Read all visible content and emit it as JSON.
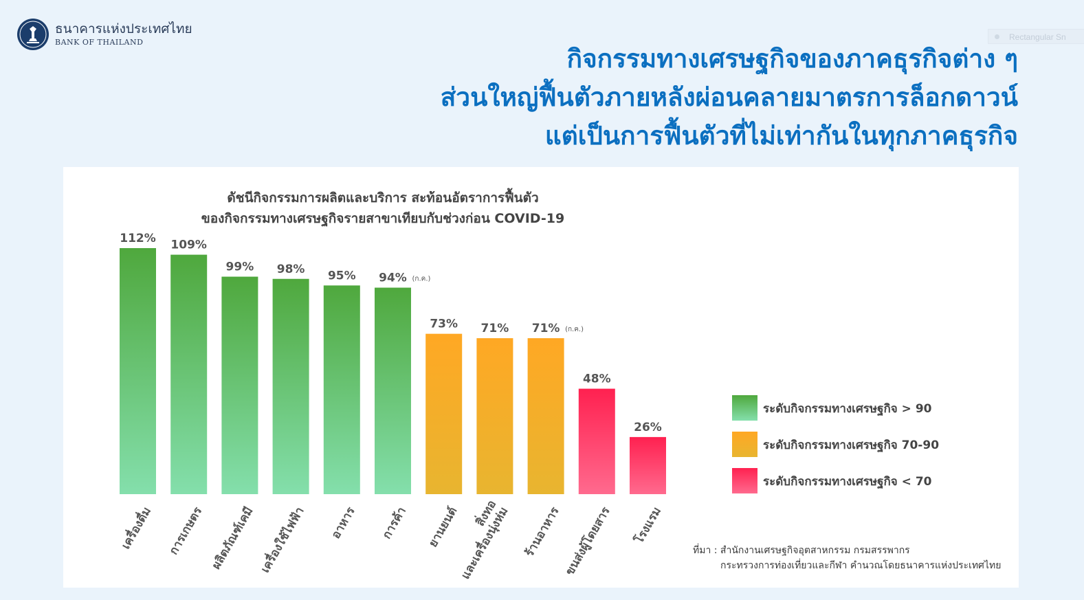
{
  "header": {
    "logo_th": "ธนาคารแห่งประเทศไทย",
    "logo_en": "BANK OF THAILAND",
    "headline": [
      "กิจกรรมทางเศรษฐกิจของภาคธุรกิจต่าง ๆ",
      "ส่วนใหญ่ฟื้นตัวภายหลังผ่อนคลายมาตรการล็อกดาวน์",
      "แต่เป็นการฟื้นตัวที่ไม่เท่ากันในทุกภาคธุรกิจ"
    ],
    "ghost_label": "Rectangular Sn"
  },
  "chart_data": {
    "type": "bar",
    "title": [
      "ดัชนีกิจกรรมการผลิตและบริการ สะท้อนอัตราการฟื้นตัว",
      "ของกิจกรรมทางเศรษฐกิจรายสาขาเทียบกับช่วงก่อน COVID-19"
    ],
    "unit": "%",
    "ylim": [
      0,
      112
    ],
    "grid": false,
    "legend_position": "right",
    "categories": [
      [
        "เครื่องดื่ม"
      ],
      [
        "การเกษตร"
      ],
      [
        "ผลิตภัณฑ์เคมี"
      ],
      [
        "เครื่องใช้ไฟฟ้า"
      ],
      [
        "อาหาร"
      ],
      [
        "การค้า"
      ],
      [
        "ยานยนต์"
      ],
      [
        "สิ่งทอ",
        "และเครื่องนุ่งห่ม"
      ],
      [
        "ร้านอาหาร"
      ],
      [
        "ขนส่งผู้โดยสาร"
      ],
      [
        "โรงแรม"
      ]
    ],
    "values": [
      112,
      109,
      99,
      98,
      95,
      94,
      73,
      71,
      71,
      48,
      26
    ],
    "level": [
      "high",
      "high",
      "high",
      "high",
      "high",
      "high",
      "mid",
      "mid",
      "mid",
      "low",
      "low"
    ],
    "value_labels": [
      "112%",
      "109%",
      "99%",
      "98%",
      "95%",
      "94%",
      "73%",
      "71%",
      "71%",
      "48%",
      "26%"
    ],
    "annotations": [
      "",
      "",
      "",
      "",
      "",
      "(ก.ค.)",
      "",
      "",
      "(ก.ค.)",
      "",
      ""
    ],
    "legend": [
      {
        "key": "high",
        "label": "ระดับกิจกรรมทางเศรษฐกิจ > 90",
        "color_top": "#4fa83d",
        "color_bottom": "#84dfac"
      },
      {
        "key": "mid",
        "label": "ระดับกิจกรรมทางเศรษฐกิจ 70-90",
        "color_top": "#ffa824",
        "color_bottom": "#e8b530"
      },
      {
        "key": "low",
        "label": "ระดับกิจกรรมทางเศรษฐกิจ < 70",
        "color_top": "#ff2150",
        "color_bottom": "#ff6a8e"
      }
    ]
  },
  "source": {
    "line1": "ที่มา : สำนักงานเศรษฐกิจอุตสาหกรรม กรมสรรพากร",
    "line2": "กระทรวงการท่องเที่ยวและกีฬา คำนวณโดยธนาคารแห่งประเทศไทย"
  }
}
